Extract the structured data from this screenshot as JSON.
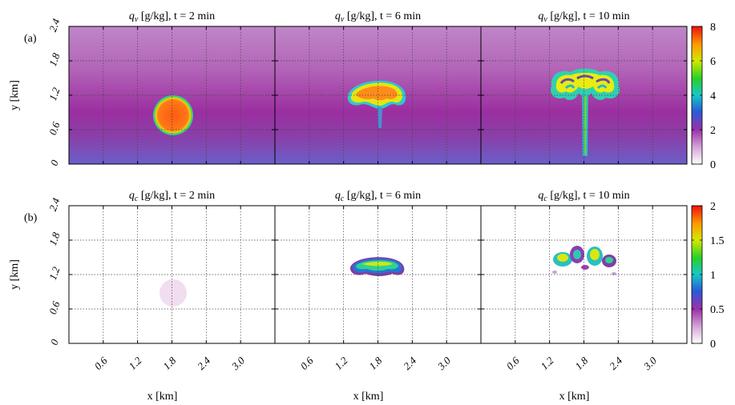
{
  "panel_labels": [
    "(a)",
    "(b)"
  ],
  "colors": {
    "qv_background_top": "#c285c6",
    "qv_background_mid": "#9a2f9f",
    "qv_background_bottom": "#6a5fc8",
    "thermal_core": "#ff5a14",
    "thermal_rim": "#2fe0c8",
    "cloud_light": "#f1ddf0"
  },
  "chart_data": [
    {
      "type": "heatmap",
      "row": 0,
      "col": 0,
      "title": {
        "symbol": "q",
        "sub": "v",
        "rest": " [g/kg], t = 2 min"
      },
      "ylabel": "y [km]",
      "xlabel": "",
      "xlim": [
        0,
        3.6
      ],
      "ylim": [
        0,
        2.4
      ],
      "xticks": [
        0.6,
        1.2,
        1.8,
        2.4,
        3.0
      ],
      "yticks": [
        "0",
        "0.6",
        "1.2",
        "1.8",
        "2.4"
      ],
      "grid": true
    },
    {
      "type": "heatmap",
      "row": 0,
      "col": 1,
      "title": {
        "symbol": "q",
        "sub": "v",
        "rest": " [g/kg], t = 6 min"
      },
      "ylabel": "",
      "xlabel": "",
      "xlim": [
        0,
        3.6
      ],
      "ylim": [
        0,
        2.4
      ],
      "xticks": [
        0.6,
        1.2,
        1.8,
        2.4,
        3.0
      ],
      "yticks": [],
      "grid": true
    },
    {
      "type": "heatmap",
      "row": 0,
      "col": 2,
      "title": {
        "symbol": "q",
        "sub": "v",
        "rest": " [g/kg], t = 10 min"
      },
      "ylabel": "",
      "xlabel": "",
      "xlim": [
        0,
        3.6
      ],
      "ylim": [
        0,
        2.4
      ],
      "xticks": [
        0.6,
        1.2,
        1.8,
        2.4,
        3.0
      ],
      "yticks": [],
      "grid": true,
      "colorbar": {
        "ticks": [
          "0",
          "2",
          "4",
          "6",
          "8"
        ],
        "range": [
          0,
          8
        ]
      }
    },
    {
      "type": "heatmap",
      "row": 1,
      "col": 0,
      "title": {
        "symbol": "q",
        "sub": "c",
        "rest": " [g/kg], t = 2 min"
      },
      "ylabel": "y [km]",
      "xlabel": "x [km]",
      "xlim": [
        0,
        3.6
      ],
      "ylim": [
        0,
        2.4
      ],
      "xticks": [
        "0.6",
        "1.2",
        "1.8",
        "2.4",
        "3.0"
      ],
      "yticks": [
        "0",
        "0.6",
        "1.2",
        "1.8",
        "2.4"
      ],
      "grid": true
    },
    {
      "type": "heatmap",
      "row": 1,
      "col": 1,
      "title": {
        "symbol": "q",
        "sub": "c",
        "rest": " [g/kg], t = 6 min"
      },
      "ylabel": "",
      "xlabel": "x [km]",
      "xlim": [
        0,
        3.6
      ],
      "ylim": [
        0,
        2.4
      ],
      "xticks": [
        "0.6",
        "1.2",
        "1.8",
        "2.4",
        "3.0"
      ],
      "yticks": [],
      "grid": true
    },
    {
      "type": "heatmap",
      "row": 1,
      "col": 2,
      "title": {
        "symbol": "q",
        "sub": "c",
        "rest": " [g/kg], t = 10 min"
      },
      "ylabel": "",
      "xlabel": "x [km]",
      "xlim": [
        0,
        3.6
      ],
      "ylim": [
        0,
        2.4
      ],
      "xticks": [
        "0.6",
        "1.2",
        "1.8",
        "2.4",
        "3.0"
      ],
      "yticks": [],
      "grid": true,
      "colorbar": {
        "ticks": [
          "0",
          "0.5",
          "1",
          "1.5",
          "2"
        ],
        "range": [
          0,
          2
        ]
      }
    }
  ]
}
